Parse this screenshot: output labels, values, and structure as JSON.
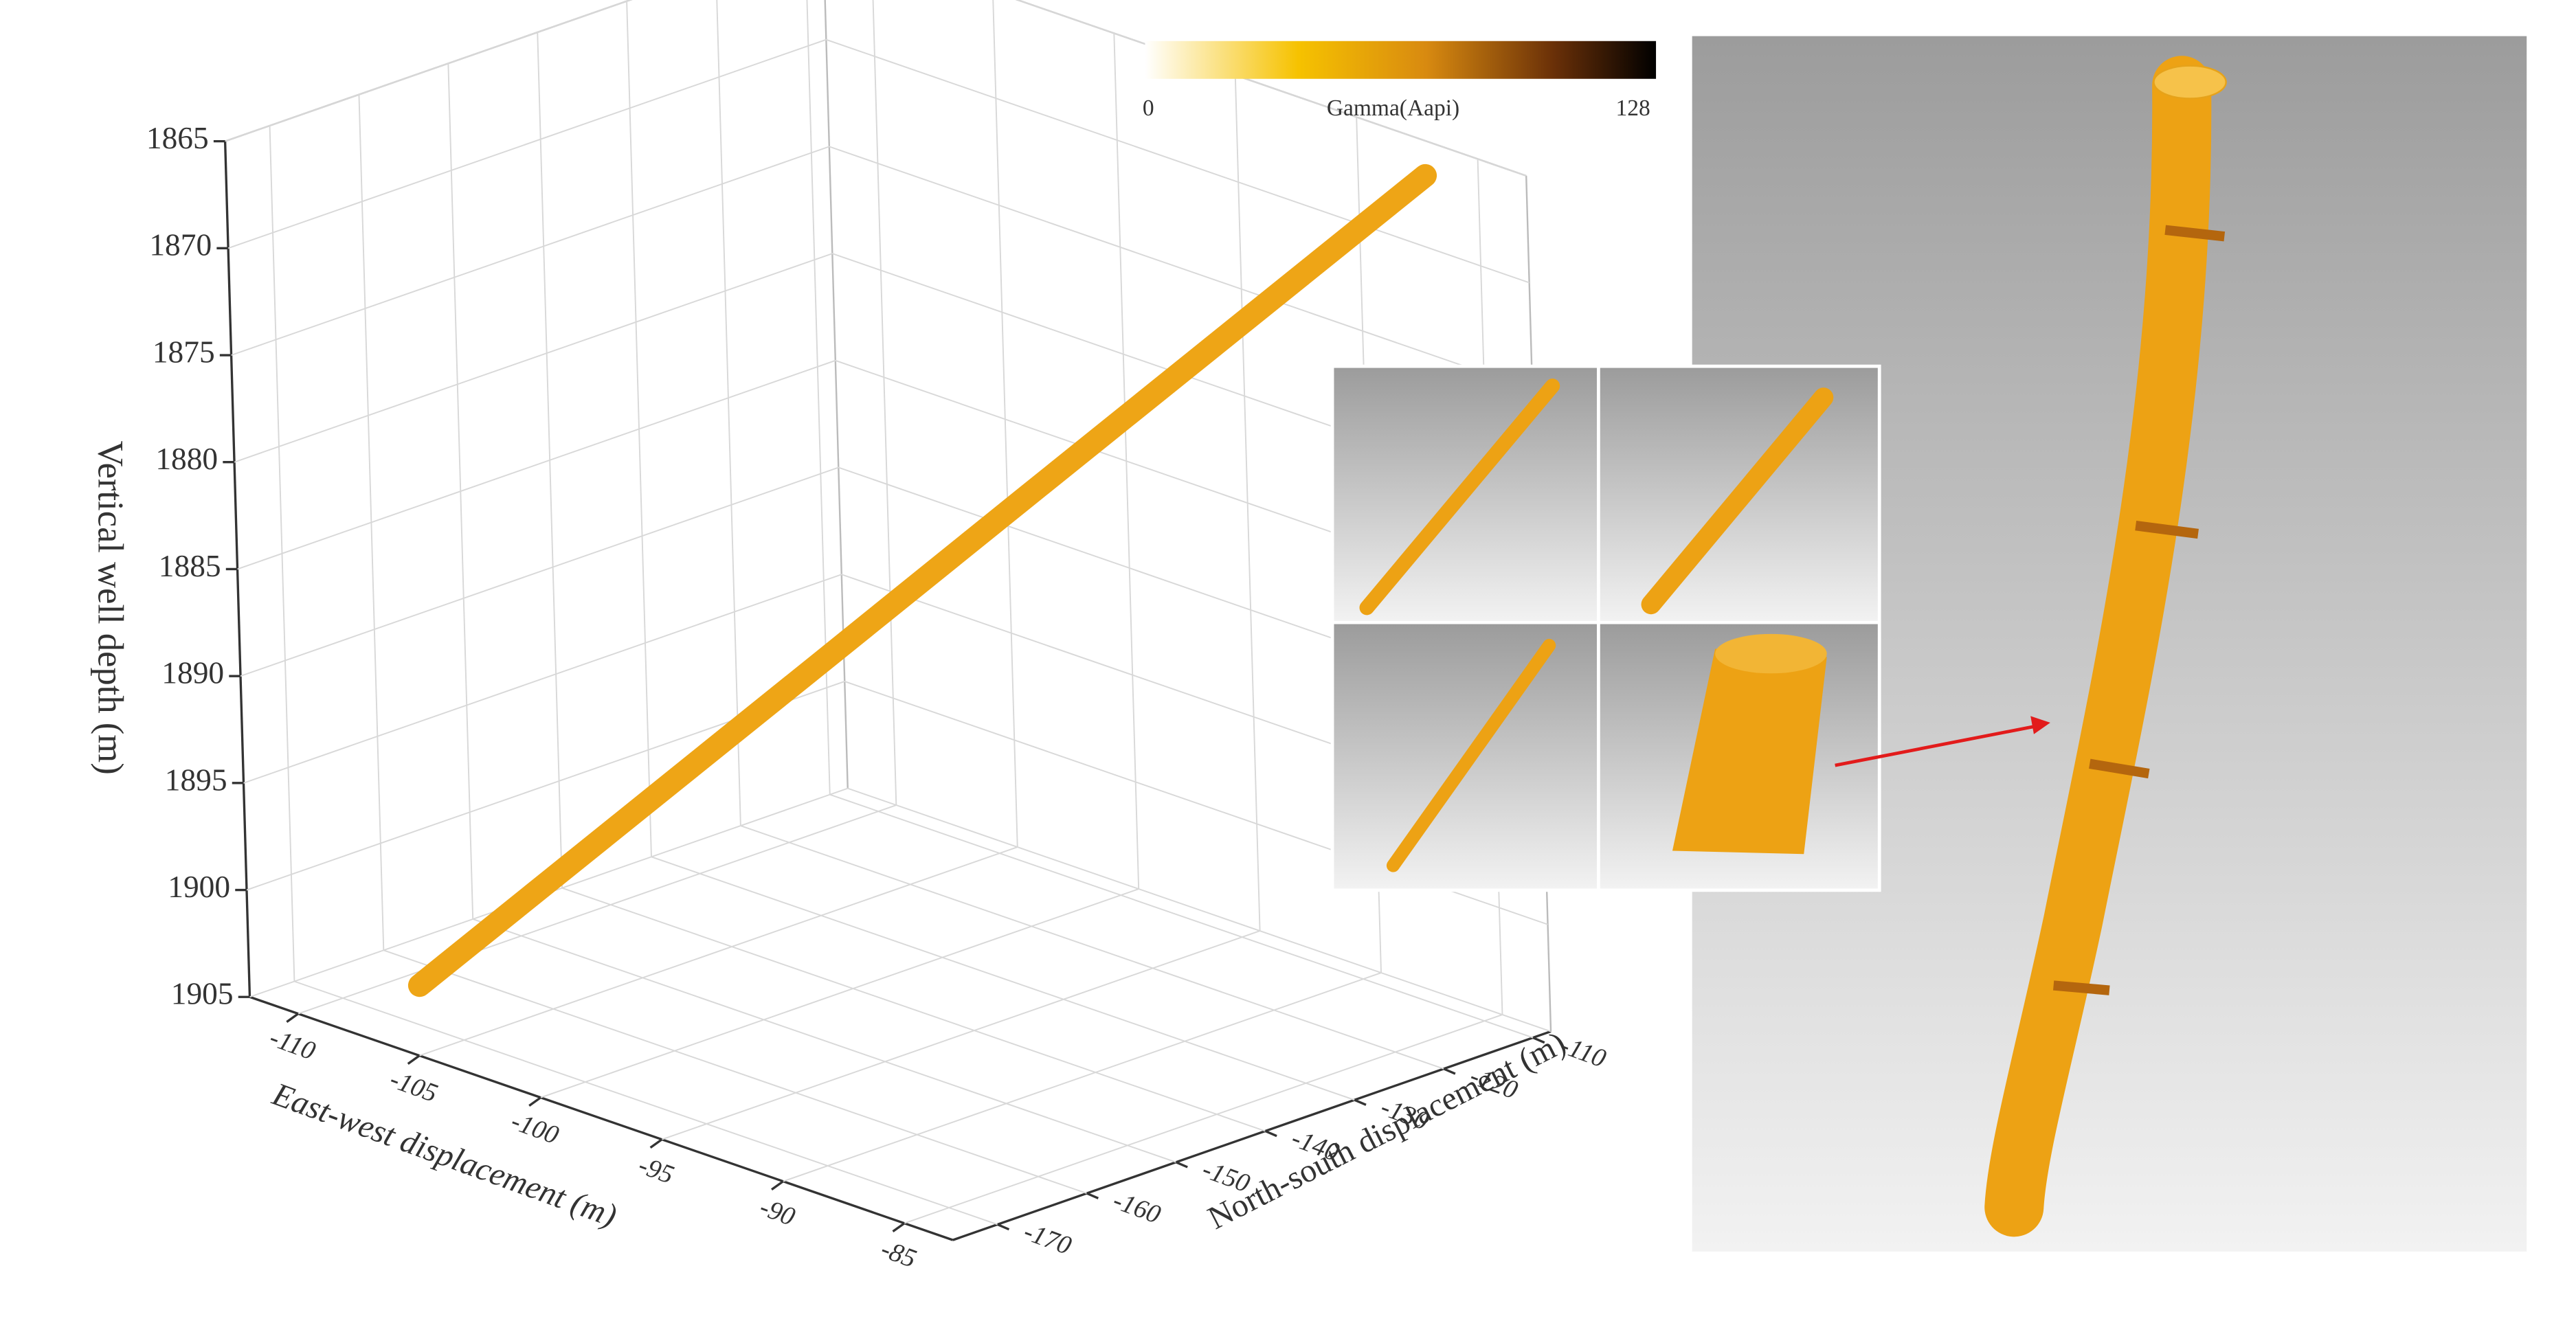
{
  "chart_data": {
    "type": "scatter3d",
    "xlabel": "East-west displacement (m)",
    "ylabel": "North-south displacement (m)",
    "zlabel": "Vertical well depth (m)",
    "xlim": [
      -112,
      -83
    ],
    "ylim": [
      -175,
      -108
    ],
    "zlim": [
      1905,
      1865
    ],
    "xticks": [
      -110,
      -105,
      -100,
      -95,
      -90,
      -85
    ],
    "yticks": [
      -170,
      -160,
      -150,
      -140,
      -130,
      -120,
      -110
    ],
    "zticks": [
      1865,
      1870,
      1875,
      1880,
      1885,
      1890,
      1895,
      1900,
      1905
    ],
    "grid": true,
    "series": [
      {
        "color": "#eea516",
        "x": [
          -106.6,
          -102.3,
          -98.0,
          -93.7,
          -89.4,
          -85.1
        ],
        "y": [
          -170.5,
          -159.1,
          -147.7,
          -136.4,
          -125.0,
          -113.6
        ],
        "z": [
          1903,
          1895.4,
          1887.8,
          1880.2,
          1872.6,
          1865
        ]
      }
    ],
    "colorbar": {
      "label": "Gamma(Aapi)",
      "clim": [
        0,
        128
      ],
      "ticks": [
        0,
        128
      ]
    }
  }
}
